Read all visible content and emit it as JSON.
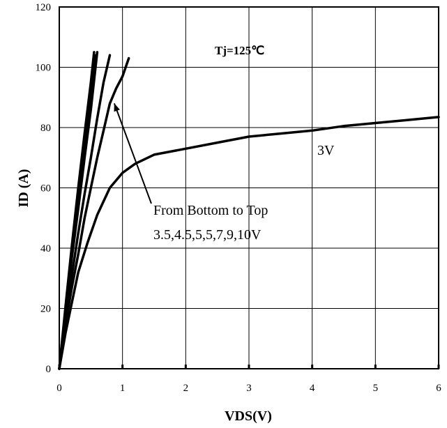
{
  "chart_data": {
    "type": "line",
    "title": "",
    "xlabel": "VDS(V)",
    "ylabel": "ID (A)",
    "xlim": [
      0,
      6
    ],
    "ylim": [
      0,
      120
    ],
    "x_ticks": [
      "0",
      "1",
      "2",
      "3",
      "4",
      "5",
      "6"
    ],
    "y_ticks": [
      "0",
      "20",
      "40",
      "60",
      "80",
      "100",
      "120"
    ],
    "grid": true,
    "annotations": {
      "temperature": "Tj=125℃",
      "curve_3v": "3V",
      "legend_line1": "From Bottom to Top",
      "legend_line2": "3.5,4.5,5,5,7,9,10V"
    },
    "series": [
      {
        "name": "3V",
        "x": [
          0,
          0.1,
          0.2,
          0.3,
          0.45,
          0.6,
          0.8,
          1.0,
          1.2,
          1.5,
          2.0,
          2.5,
          3.0,
          3.5,
          4.0,
          4.5,
          5.0,
          5.5,
          6.0
        ],
        "y": [
          0,
          12,
          22,
          32,
          42,
          51,
          60,
          65,
          68,
          71,
          73,
          75,
          77,
          78,
          79,
          80.5,
          81.5,
          82.5,
          83.5
        ]
      },
      {
        "name": "",
        "x": [
          0,
          0.1,
          0.2,
          0.3,
          0.4,
          0.5,
          0.6,
          0.7,
          0.8,
          0.9,
          1.0,
          1.1
        ],
        "y": [
          0,
          15,
          27,
          38,
          50,
          60,
          70,
          79,
          88,
          93,
          97,
          103
        ]
      },
      {
        "name": "",
        "x": [
          0,
          0.1,
          0.2,
          0.3,
          0.4,
          0.5,
          0.6,
          0.7,
          0.8
        ],
        "y": [
          0,
          17,
          31,
          45,
          58,
          70,
          83,
          95,
          104
        ]
      },
      {
        "name": "",
        "x": [
          0,
          0.1,
          0.2,
          0.3,
          0.4,
          0.5,
          0.6
        ],
        "y": [
          0,
          19,
          37,
          53,
          70,
          86,
          105
        ]
      },
      {
        "name": "",
        "x": [
          0,
          0.1,
          0.2,
          0.3,
          0.4,
          0.5,
          0.58
        ],
        "y": [
          0,
          20,
          39,
          57,
          74,
          90,
          104
        ]
      },
      {
        "name": "",
        "x": [
          0,
          0.1,
          0.2,
          0.3,
          0.4,
          0.5,
          0.55
        ],
        "y": [
          0,
          21,
          41,
          60,
          78,
          95,
          105
        ]
      }
    ]
  }
}
